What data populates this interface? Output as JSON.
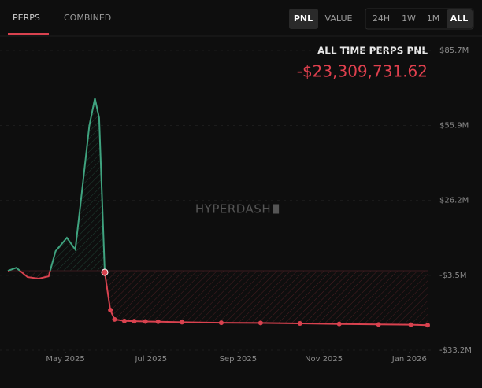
{
  "tabs": [
    "PERPS",
    "COMBINED"
  ],
  "modes": [
    "PNL",
    "VALUE"
  ],
  "ranges": [
    "24H",
    "1W",
    "1M",
    "ALL"
  ],
  "heading": "ALL TIME PERPS PNL",
  "total_pnl": "-$23,309,731.62",
  "watermark": "HYPERDASH",
  "chart_data": {
    "type": "line",
    "x": [
      "2025-03-21",
      "2025-03-27",
      "2025-04-04",
      "2025-04-12",
      "2025-04-19",
      "2025-04-24",
      "2025-05-02",
      "2025-05-08",
      "2025-05-13",
      "2025-05-18",
      "2025-05-22",
      "2025-05-25",
      "2025-05-29",
      "2025-06-02",
      "2025-06-05",
      "2025-06-12",
      "2025-06-19",
      "2025-06-27",
      "2025-07-06",
      "2025-07-23",
      "2025-08-20",
      "2025-09-17",
      "2025-10-15",
      "2025-11-12",
      "2025-12-10",
      "2026-01-02",
      "2026-01-14"
    ],
    "series": [
      {
        "name": "PNL",
        "color": "#d9424f",
        "values": [
          -1.7,
          -0.5,
          -4.2,
          -4.8,
          -3.9,
          6.1,
          11.4,
          6.7,
          31,
          55.8,
          66.7,
          58.9,
          -2.3,
          -17.3,
          -21,
          -21.6,
          -21.7,
          -21.8,
          -21.9,
          -22.1,
          -22.3,
          -22.4,
          -22.6,
          -22.8,
          -23,
          -23.1,
          -23.31
        ]
      }
    ],
    "positive_color": "#3fa37f",
    "xlim": [
      "2025-03-21",
      "2026-01-14"
    ],
    "xticks": [
      {
        "value": "2025-05-01",
        "label": "May 2025"
      },
      {
        "value": "2025-07-01",
        "label": "Jul 2025"
      },
      {
        "value": "2025-09-01",
        "label": "Sep 2025"
      },
      {
        "value": "2025-11-01",
        "label": "Nov 2025"
      },
      {
        "value": "2026-01-01",
        "label": "Jan 2026"
      }
    ],
    "ylim": [
      -33.2,
      85.7
    ],
    "yticks": [
      {
        "value": 85.7,
        "label": "$85.7M"
      },
      {
        "value": 55.9,
        "label": "$55.9M"
      },
      {
        "value": 26.2,
        "label": "$26.2M"
      },
      {
        "value": -3.5,
        "label": "-$3.5M"
      },
      {
        "value": -33.2,
        "label": "-$33.2M"
      }
    ],
    "grid": true
  }
}
